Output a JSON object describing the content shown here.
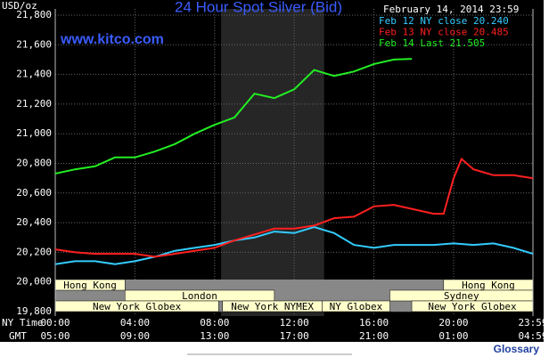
{
  "chart_data": {
    "type": "line",
    "title": "24 Hour Spot Silver (Bid)",
    "y_label": "USD/oz",
    "date_label": "February 14, 2014 23:59",
    "watermark": "www.kitco.com",
    "x_label": "NY Time",
    "x2_label": "GMT",
    "link": "Glossary",
    "xlim": [
      0,
      23.983
    ],
    "ylim": [
      19800,
      21800
    ],
    "grid": true,
    "shaded_region": [
      8.33,
      13.5
    ],
    "yticks": [
      {
        "value": 19800,
        "label": "19,800"
      },
      {
        "value": 20000,
        "label": "20,000"
      },
      {
        "value": 20200,
        "label": "20,200"
      },
      {
        "value": 20400,
        "label": "20,400"
      },
      {
        "value": 20600,
        "label": "20,600"
      },
      {
        "value": 20800,
        "label": "20,800"
      },
      {
        "value": 21000,
        "label": "21,000"
      },
      {
        "value": 21200,
        "label": "21,200"
      },
      {
        "value": 21400,
        "label": "21,400"
      },
      {
        "value": 21600,
        "label": "21,600"
      },
      {
        "value": 21800,
        "label": "21,800"
      }
    ],
    "xticks": [
      {
        "value": 0,
        "label": "00:00"
      },
      {
        "value": 4,
        "label": "04:00"
      },
      {
        "value": 8,
        "label": "08:00"
      },
      {
        "value": 12,
        "label": "12:00"
      },
      {
        "value": 16,
        "label": "16:00"
      },
      {
        "value": 20,
        "label": "20:00"
      },
      {
        "value": 23.983,
        "label": "23:59"
      }
    ],
    "x2ticks": [
      {
        "value": 0,
        "label": "05:00"
      },
      {
        "value": 4,
        "label": "09:00"
      },
      {
        "value": 8,
        "label": "13:00"
      },
      {
        "value": 12,
        "label": "17:00"
      },
      {
        "value": 16,
        "label": "21:00"
      },
      {
        "value": 20,
        "label": "01:00"
      },
      {
        "value": 23.983,
        "label": "04:59"
      }
    ],
    "session_rows": [
      [
        {
          "name": "Hong Kong",
          "start": 0,
          "end": 3.5
        },
        {
          "name": "Hong Kong",
          "start": 19.5,
          "end": 23.983
        }
      ],
      [
        {
          "name": "London",
          "start": 3.5,
          "end": 11
        },
        {
          "name": "Sydney",
          "start": 16.8,
          "end": 23.983
        }
      ],
      [
        {
          "name": "New York Globex",
          "start": 0,
          "end": 8.2
        },
        {
          "name": "New York NYMEX",
          "start": 8.4,
          "end": 13.4
        },
        {
          "name": "NY Globex",
          "start": 13.4,
          "end": 16.8
        },
        {
          "name": "New York Globex",
          "start": 17.9,
          "end": 23.983
        }
      ]
    ],
    "series": [
      {
        "name": "Feb 12 NY close 20.240",
        "color": "#33ccff",
        "x": [
          0,
          1,
          2,
          3,
          4,
          5,
          6,
          7,
          8,
          9,
          10,
          11,
          12,
          13,
          14,
          15,
          16,
          17,
          18,
          19,
          20,
          21,
          22,
          23,
          23.983
        ],
        "values": [
          20120,
          20140,
          20140,
          20120,
          20140,
          20170,
          20210,
          20230,
          20250,
          20280,
          20300,
          20340,
          20330,
          20370,
          20330,
          20250,
          20230,
          20250,
          20250,
          20250,
          20260,
          20250,
          20260,
          20230,
          20190
        ]
      },
      {
        "name": "Feb 13 NY close 20.485",
        "color": "#ff2020",
        "x": [
          0,
          1,
          2,
          3,
          4,
          5,
          6,
          7,
          8,
          9,
          10,
          11,
          12,
          13,
          14,
          15,
          16,
          17,
          18,
          19,
          19.5,
          20,
          20.4,
          21,
          22,
          23,
          23.983
        ],
        "values": [
          20220,
          20200,
          20190,
          20190,
          20190,
          20170,
          20190,
          20210,
          20230,
          20280,
          20320,
          20360,
          20360,
          20380,
          20430,
          20440,
          20510,
          20520,
          20490,
          20460,
          20460,
          20700,
          20830,
          20760,
          20720,
          20720,
          20700
        ]
      },
      {
        "name": "Feb 14 Last 21.505",
        "color": "#22ee22",
        "x": [
          0,
          1,
          2,
          3,
          4,
          5,
          6,
          7,
          8,
          9,
          10,
          11,
          12,
          13,
          14,
          15,
          16,
          17,
          17.9
        ],
        "values": [
          20731,
          20760,
          20780,
          20840,
          20840,
          20880,
          20930,
          21000,
          21060,
          21110,
          21270,
          21240,
          21300,
          21430,
          21390,
          21420,
          21470,
          21500,
          21505
        ]
      }
    ]
  }
}
